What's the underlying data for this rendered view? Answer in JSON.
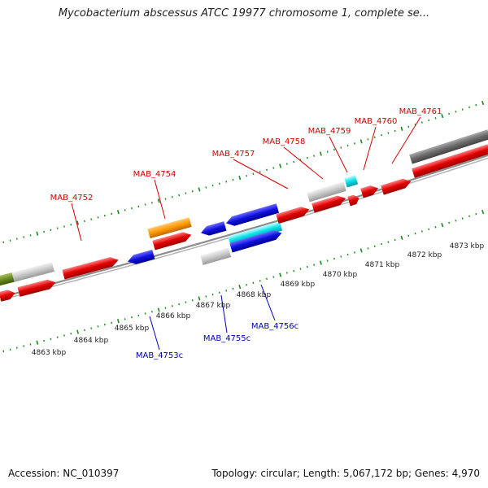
{
  "title": "Mycobacterium abscessus ATCC 19977 chromosome 1, complete se...",
  "footer": {
    "accession": "Accession: NC_010397",
    "summary": "Topology: circular; Length: 5,067,172 bp; Genes: 4,970"
  },
  "colors": {
    "forward_label": "#d40000",
    "reverse_label": "#0000b4",
    "tick": "#1a8a1a",
    "backbone": "#8c8c8c"
  },
  "kbp_labels": [
    "4863 kbp",
    "4864 kbp",
    "4865 kbp",
    "4866 kbp",
    "4867 kbp",
    "4868 kbp",
    "4869 kbp",
    "4870 kbp",
    "4871 kbp",
    "4872 kbp",
    "4873 kbp"
  ],
  "genes_forward_labeled": [
    "MAB_4752",
    "MAB_4754",
    "MAB_4757",
    "MAB_4758",
    "MAB_4759",
    "MAB_4760",
    "MAB_4761"
  ],
  "genes_reverse_labeled": [
    "MAB_4753c",
    "MAB_4755c",
    "MAB_4756c"
  ]
}
